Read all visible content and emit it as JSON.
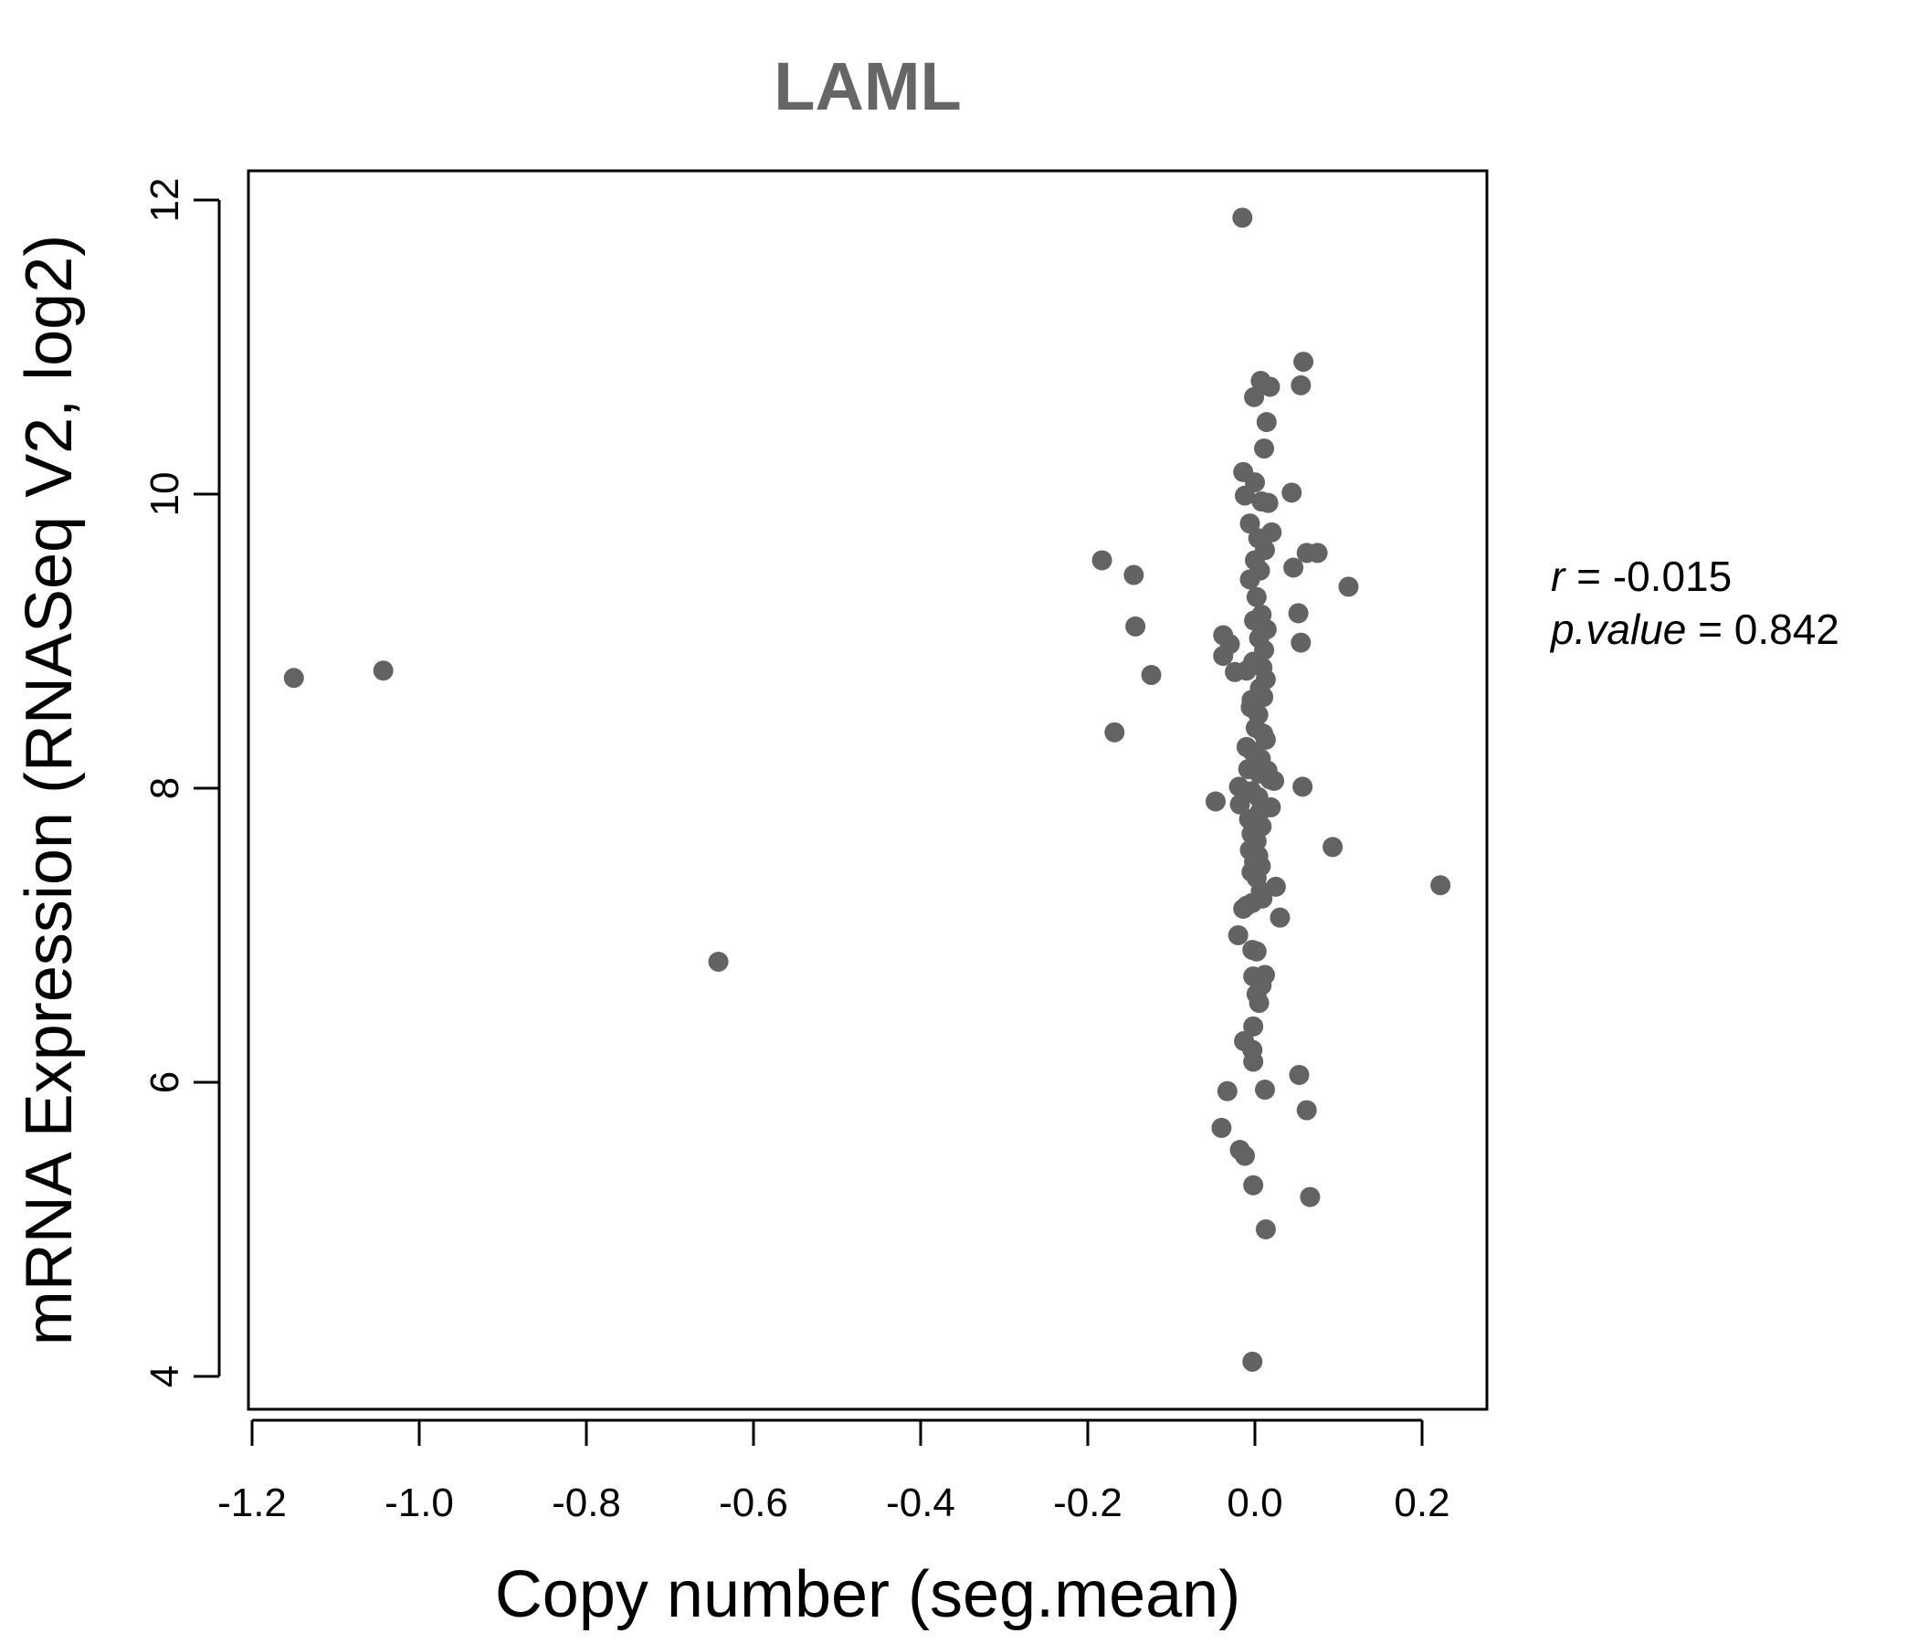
{
  "chart_data": {
    "type": "scatter",
    "title": "LAML",
    "xlabel": "Copy number (seg.mean)",
    "ylabel": "mRNA Expression (RNASeq V2, log2)",
    "xlim": [
      -1.2,
      0.25
    ],
    "ylim": [
      3.85,
      12.2
    ],
    "x_ticks": [
      -1.2,
      -1.0,
      -0.8,
      -0.6,
      -0.4,
      -0.2,
      0.0,
      0.2
    ],
    "x_tick_labels": [
      "-1.2",
      "-1.0",
      "-0.8",
      "-0.6",
      "-0.4",
      "-0.2",
      "0.0",
      "0.2"
    ],
    "y_ticks": [
      4,
      6,
      8,
      10,
      12
    ],
    "y_tick_labels": [
      "4",
      "6",
      "8",
      "10",
      "12"
    ],
    "point_color": "#636363",
    "points": [
      [
        -1.15,
        8.75
      ],
      [
        -1.043,
        8.8
      ],
      [
        -0.642,
        6.82
      ],
      [
        -0.183,
        9.55
      ],
      [
        -0.145,
        9.45
      ],
      [
        -0.143,
        9.1
      ],
      [
        -0.124,
        8.77
      ],
      [
        -0.168,
        8.38
      ],
      [
        -0.015,
        11.88
      ],
      [
        0.058,
        10.9
      ],
      [
        0.055,
        10.74
      ],
      [
        0.007,
        10.77
      ],
      [
        0.018,
        10.73
      ],
      [
        -0.001,
        10.66
      ],
      [
        0.014,
        10.49
      ],
      [
        0.011,
        10.31
      ],
      [
        -0.014,
        10.15
      ],
      [
        0.0,
        10.08
      ],
      [
        0.044,
        10.01
      ],
      [
        -0.012,
        9.99
      ],
      [
        0.008,
        9.95
      ],
      [
        0.016,
        9.94
      ],
      [
        0.02,
        9.74
      ],
      [
        -0.006,
        9.8
      ],
      [
        0.004,
        9.7
      ],
      [
        0.012,
        9.62
      ],
      [
        0.062,
        9.6
      ],
      [
        0.075,
        9.6
      ],
      [
        0.046,
        9.5
      ],
      [
        0.0,
        9.55
      ],
      [
        0.006,
        9.48
      ],
      [
        -0.006,
        9.42
      ],
      [
        0.112,
        9.37
      ],
      [
        0.002,
        9.3
      ],
      [
        0.052,
        9.19
      ],
      [
        0.008,
        9.18
      ],
      [
        -0.001,
        9.14
      ],
      [
        0.014,
        9.08
      ],
      [
        -0.038,
        9.04
      ],
      [
        0.005,
        9.02
      ],
      [
        -0.03,
        8.98
      ],
      [
        0.055,
        8.99
      ],
      [
        0.011,
        8.94
      ],
      [
        -0.038,
        8.9
      ],
      [
        -0.002,
        8.86
      ],
      [
        -0.024,
        8.79
      ],
      [
        0.009,
        8.82
      ],
      [
        0.013,
        8.74
      ],
      [
        -0.01,
        8.8
      ],
      [
        0.006,
        8.68
      ],
      [
        -0.004,
        8.6
      ],
      [
        0.01,
        8.62
      ],
      [
        -0.005,
        8.55
      ],
      [
        0.004,
        8.5
      ],
      [
        0.001,
        8.41
      ],
      [
        0.01,
        8.37
      ],
      [
        0.013,
        8.33
      ],
      [
        -0.01,
        8.28
      ],
      [
        -0.003,
        8.25
      ],
      [
        0.007,
        8.2
      ],
      [
        -0.008,
        8.13
      ],
      [
        0.015,
        8.12
      ],
      [
        0.005,
        8.1
      ],
      [
        0.018,
        8.06
      ],
      [
        0.023,
        8.05
      ],
      [
        -0.019,
        8.01
      ],
      [
        0.057,
        8.01
      ],
      [
        -0.004,
        7.98
      ],
      [
        0.004,
        7.94
      ],
      [
        -0.047,
        7.91
      ],
      [
        -0.018,
        7.89
      ],
      [
        0.019,
        7.87
      ],
      [
        0.006,
        7.84
      ],
      [
        -0.007,
        7.79
      ],
      [
        0.008,
        7.74
      ],
      [
        -0.004,
        7.69
      ],
      [
        0.002,
        7.64
      ],
      [
        0.093,
        7.6
      ],
      [
        -0.006,
        7.58
      ],
      [
        0.004,
        7.54
      ],
      [
        -0.001,
        7.5
      ],
      [
        0.007,
        7.47
      ],
      [
        -0.004,
        7.43
      ],
      [
        0.002,
        7.39
      ],
      [
        0.025,
        7.33
      ],
      [
        0.222,
        7.34
      ],
      [
        0.007,
        7.3
      ],
      [
        0.009,
        7.25
      ],
      [
        -0.003,
        7.22
      ],
      [
        -0.014,
        7.18
      ],
      [
        0.03,
        7.12
      ],
      [
        -0.01,
        7.2
      ],
      [
        -0.02,
        7.0
      ],
      [
        0.002,
        6.89
      ],
      [
        -0.003,
        6.9
      ],
      [
        0.012,
        6.73
      ],
      [
        -0.002,
        6.72
      ],
      [
        0.008,
        6.66
      ],
      [
        0.002,
        6.6
      ],
      [
        0.005,
        6.54
      ],
      [
        -0.002,
        6.38
      ],
      [
        -0.013,
        6.28
      ],
      [
        -0.003,
        6.22
      ],
      [
        -0.002,
        6.14
      ],
      [
        0.053,
        6.05
      ],
      [
        -0.033,
        5.94
      ],
      [
        0.012,
        5.95
      ],
      [
        0.062,
        5.81
      ],
      [
        -0.04,
        5.69
      ],
      [
        -0.018,
        5.54
      ],
      [
        -0.012,
        5.5
      ],
      [
        -0.002,
        5.3
      ],
      [
        0.066,
        5.22
      ],
      [
        0.013,
        5.0
      ],
      [
        -0.003,
        4.1
      ]
    ],
    "stats": {
      "r_label": "r",
      "r_value": "-0.015",
      "p_label": "p.value",
      "p_value": "0.842"
    }
  }
}
